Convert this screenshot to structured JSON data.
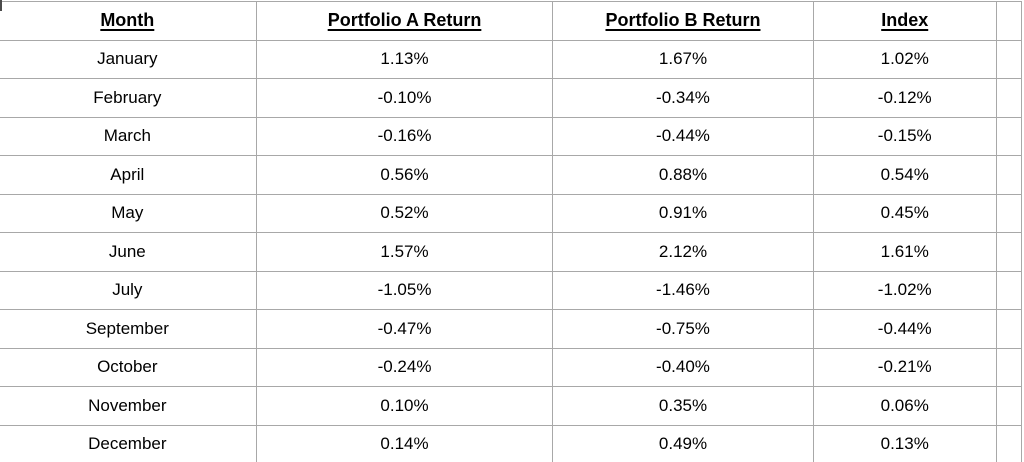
{
  "table": {
    "headers": {
      "month": "Month",
      "portfolio_a": "Portfolio A Return",
      "portfolio_b": "Portfolio B Return",
      "index": "Index"
    },
    "rows": [
      {
        "month": "January",
        "a": "1.13%",
        "b": "1.67%",
        "index": "1.02%"
      },
      {
        "month": "February",
        "a": "-0.10%",
        "b": "-0.34%",
        "index": "-0.12%"
      },
      {
        "month": "March",
        "a": "-0.16%",
        "b": "-0.44%",
        "index": "-0.15%"
      },
      {
        "month": "April",
        "a": "0.56%",
        "b": "0.88%",
        "index": "0.54%"
      },
      {
        "month": "May",
        "a": "0.52%",
        "b": "0.91%",
        "index": "0.45%"
      },
      {
        "month": "June",
        "a": "1.57%",
        "b": "2.12%",
        "index": "1.61%"
      },
      {
        "month": "July",
        "a": "-1.05%",
        "b": "-1.46%",
        "index": "-1.02%"
      },
      {
        "month": "September",
        "a": "-0.47%",
        "b": "-0.75%",
        "index": "-0.44%"
      },
      {
        "month": "October",
        "a": "-0.24%",
        "b": "-0.40%",
        "index": "-0.21%"
      },
      {
        "month": "November",
        "a": "0.10%",
        "b": "0.35%",
        "index": "0.06%"
      },
      {
        "month": "December",
        "a": "0.14%",
        "b": "0.49%",
        "index": "0.13%"
      }
    ]
  },
  "colors": {
    "grid_border": "#a8a8a8",
    "text": "#000000",
    "background": "#ffffff"
  }
}
